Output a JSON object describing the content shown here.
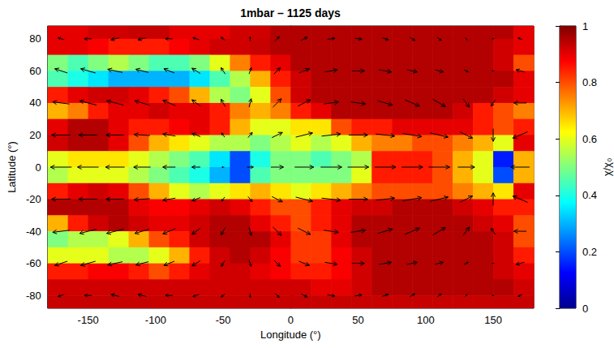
{
  "chart_data": {
    "type": "heatmap",
    "title": "1mbar – 1125 days",
    "x_label": "Longitude (°)",
    "y_label": "Latitude (°)",
    "xlim": [
      -180,
      180
    ],
    "xticks": [
      -150,
      -100,
      -50,
      0,
      50,
      100,
      150
    ],
    "ylim": [
      -88,
      88
    ],
    "yticks": [
      -80,
      -60,
      -40,
      -20,
      0,
      20,
      40,
      60,
      80
    ],
    "grid": false,
    "lon": [
      -172.5,
      -157.5,
      -142.5,
      -127.5,
      -112.5,
      -97.5,
      -82.5,
      -67.5,
      -52.5,
      -37.5,
      -22.5,
      -7.5,
      7.5,
      22.5,
      37.5,
      52.5,
      67.5,
      82.5,
      97.5,
      112.5,
      127.5,
      142.5,
      157.5,
      172.5
    ],
    "lat": [
      85,
      75,
      65,
      55,
      45,
      35,
      25,
      15,
      5,
      -5,
      -15,
      -25,
      -35,
      -45,
      -55,
      -65,
      -75,
      -85
    ],
    "values": [
      [
        0.9,
        0.9,
        0.92,
        0.92,
        0.93,
        0.93,
        0.9,
        0.9,
        0.9,
        0.92,
        0.92,
        0.95,
        0.95,
        0.95,
        0.95,
        0.95,
        0.95,
        0.95,
        0.95,
        0.95,
        0.95,
        0.95,
        0.95,
        0.9
      ],
      [
        0.9,
        0.9,
        0.88,
        0.85,
        0.85,
        0.85,
        0.88,
        0.9,
        0.92,
        0.92,
        0.93,
        0.95,
        0.95,
        0.95,
        0.95,
        0.95,
        0.95,
        0.95,
        0.95,
        0.95,
        0.95,
        0.95,
        0.92,
        0.9
      ],
      [
        0.5,
        0.45,
        0.5,
        0.55,
        0.5,
        0.45,
        0.45,
        0.5,
        0.6,
        0.75,
        0.85,
        0.9,
        0.95,
        0.95,
        0.95,
        0.95,
        0.95,
        0.95,
        0.95,
        0.95,
        0.95,
        0.95,
        0.92,
        0.8
      ],
      [
        0.45,
        0.4,
        0.35,
        0.3,
        0.3,
        0.3,
        0.3,
        0.35,
        0.45,
        0.55,
        0.7,
        0.85,
        0.92,
        0.95,
        0.95,
        0.95,
        0.95,
        0.95,
        0.95,
        0.95,
        0.95,
        0.95,
        0.95,
        0.9
      ],
      [
        0.85,
        0.9,
        0.92,
        0.92,
        0.9,
        0.85,
        0.8,
        0.7,
        0.55,
        0.5,
        0.6,
        0.8,
        0.92,
        0.95,
        0.95,
        0.95,
        0.95,
        0.95,
        0.95,
        0.95,
        0.95,
        0.95,
        0.92,
        0.9
      ],
      [
        0.7,
        0.75,
        0.85,
        0.9,
        0.9,
        0.92,
        0.9,
        0.9,
        0.85,
        0.75,
        0.7,
        0.75,
        0.85,
        0.9,
        0.95,
        0.95,
        0.95,
        0.95,
        0.95,
        0.95,
        0.92,
        0.85,
        0.8,
        0.75
      ],
      [
        0.9,
        0.95,
        0.95,
        0.9,
        0.85,
        0.85,
        0.88,
        0.9,
        0.85,
        0.7,
        0.6,
        0.6,
        0.65,
        0.65,
        0.8,
        0.85,
        0.85,
        0.9,
        0.9,
        0.9,
        0.9,
        0.85,
        0.8,
        0.85
      ],
      [
        0.92,
        0.95,
        0.95,
        0.9,
        0.8,
        0.7,
        0.65,
        0.6,
        0.55,
        0.55,
        0.5,
        0.55,
        0.6,
        0.55,
        0.6,
        0.7,
        0.75,
        0.75,
        0.8,
        0.8,
        0.75,
        0.7,
        0.6,
        0.9
      ],
      [
        0.6,
        0.65,
        0.65,
        0.65,
        0.6,
        0.55,
        0.5,
        0.45,
        0.35,
        0.2,
        0.4,
        0.5,
        0.5,
        0.45,
        0.5,
        0.55,
        0.85,
        0.85,
        0.85,
        0.8,
        0.7,
        0.6,
        0.15,
        0.7
      ],
      [
        0.55,
        0.6,
        0.6,
        0.6,
        0.55,
        0.5,
        0.45,
        0.4,
        0.3,
        0.2,
        0.45,
        0.5,
        0.5,
        0.5,
        0.5,
        0.6,
        0.85,
        0.85,
        0.85,
        0.8,
        0.7,
        0.6,
        0.2,
        0.7
      ],
      [
        0.85,
        0.9,
        0.92,
        0.9,
        0.8,
        0.7,
        0.6,
        0.55,
        0.6,
        0.65,
        0.7,
        0.65,
        0.6,
        0.65,
        0.7,
        0.75,
        0.8,
        0.8,
        0.8,
        0.8,
        0.75,
        0.7,
        0.65,
        0.9
      ],
      [
        0.95,
        0.95,
        0.95,
        0.95,
        0.9,
        0.88,
        0.88,
        0.9,
        0.92,
        0.9,
        0.85,
        0.8,
        0.8,
        0.85,
        0.9,
        0.92,
        0.92,
        0.95,
        0.95,
        0.95,
        0.92,
        0.9,
        0.85,
        0.85
      ],
      [
        0.7,
        0.85,
        0.92,
        0.95,
        0.92,
        0.9,
        0.9,
        0.92,
        0.95,
        0.95,
        0.9,
        0.85,
        0.8,
        0.85,
        0.9,
        0.95,
        0.95,
        0.95,
        0.95,
        0.95,
        0.95,
        0.92,
        0.9,
        0.8
      ],
      [
        0.5,
        0.55,
        0.55,
        0.6,
        0.7,
        0.8,
        0.85,
        0.92,
        0.95,
        0.95,
        0.95,
        0.9,
        0.82,
        0.82,
        0.9,
        0.95,
        0.95,
        0.95,
        0.95,
        0.95,
        0.95,
        0.95,
        0.92,
        0.8
      ],
      [
        0.6,
        0.6,
        0.6,
        0.55,
        0.55,
        0.6,
        0.7,
        0.85,
        0.92,
        0.95,
        0.92,
        0.88,
        0.82,
        0.82,
        0.88,
        0.92,
        0.95,
        0.95,
        0.95,
        0.95,
        0.95,
        0.95,
        0.92,
        0.85
      ],
      [
        0.85,
        0.85,
        0.88,
        0.88,
        0.85,
        0.8,
        0.85,
        0.9,
        0.92,
        0.92,
        0.9,
        0.88,
        0.85,
        0.85,
        0.88,
        0.92,
        0.95,
        0.95,
        0.95,
        0.95,
        0.95,
        0.95,
        0.92,
        0.9
      ],
      [
        0.92,
        0.92,
        0.92,
        0.92,
        0.92,
        0.92,
        0.92,
        0.92,
        0.92,
        0.92,
        0.92,
        0.92,
        0.92,
        0.9,
        0.9,
        0.92,
        0.95,
        0.95,
        0.95,
        0.95,
        0.95,
        0.95,
        0.95,
        0.92
      ],
      [
        0.93,
        0.93,
        0.93,
        0.93,
        0.93,
        0.93,
        0.93,
        0.93,
        0.93,
        0.93,
        0.93,
        0.93,
        0.93,
        0.93,
        0.93,
        0.93,
        0.93,
        0.93,
        0.93,
        0.93,
        0.93,
        0.93,
        0.93,
        0.93
      ]
    ],
    "vectors": {
      "lon": [
        -170,
        -150,
        -130,
        -110,
        -90,
        -70,
        -50,
        -30,
        -10,
        10,
        30,
        50,
        70,
        90,
        110,
        130,
        150,
        170
      ],
      "lat": [
        80,
        60,
        40,
        20,
        0,
        -20,
        -40,
        -60,
        -80
      ],
      "u": [
        [
          -0.3,
          -0.35,
          -0.4,
          -0.4,
          -0.35,
          -0.3,
          -0.2,
          0,
          0.2,
          0.3,
          0.35,
          0.35,
          0.3,
          0.25,
          0.2,
          0.1,
          -0.1,
          -0.2
        ],
        [
          -0.6,
          -0.7,
          -0.7,
          -0.6,
          -0.5,
          -0.4,
          -0.2,
          0.1,
          0.3,
          0.5,
          0.6,
          0.6,
          0.6,
          0.5,
          0.4,
          0.2,
          -0.1,
          -0.4
        ],
        [
          -0.8,
          -0.8,
          -0.8,
          -0.7,
          -0.6,
          -0.4,
          -0.2,
          0.1,
          0.4,
          0.6,
          0.7,
          0.7,
          0.7,
          0.7,
          0.6,
          0.3,
          -0.2,
          -0.6
        ],
        [
          -0.9,
          -0.9,
          -0.85,
          -0.75,
          -0.6,
          -0.4,
          -0.15,
          0.2,
          0.5,
          0.8,
          0.9,
          0.9,
          0.9,
          0.9,
          0.85,
          0.6,
          0,
          -0.7
        ],
        [
          -1,
          -1,
          -0.9,
          -0.8,
          -0.6,
          -0.4,
          -0.1,
          0.3,
          0.6,
          0.9,
          1,
          1,
          1,
          1,
          1,
          0.8,
          0,
          -0.9
        ],
        [
          -0.9,
          -0.9,
          -0.85,
          -0.75,
          -0.6,
          -0.4,
          -0.15,
          0.2,
          0.5,
          0.8,
          0.9,
          0.9,
          0.9,
          0.9,
          0.85,
          0.6,
          0,
          -0.7
        ],
        [
          -0.8,
          -0.8,
          -0.8,
          -0.7,
          -0.6,
          -0.4,
          -0.2,
          0.1,
          0.4,
          0.6,
          0.7,
          0.7,
          0.7,
          0.7,
          0.6,
          0.3,
          -0.2,
          -0.6
        ],
        [
          -0.6,
          -0.7,
          -0.7,
          -0.6,
          -0.5,
          -0.4,
          -0.2,
          0.1,
          0.3,
          0.5,
          0.6,
          0.6,
          0.6,
          0.5,
          0.4,
          0.2,
          -0.1,
          -0.4
        ],
        [
          -0.3,
          -0.35,
          -0.4,
          -0.4,
          -0.35,
          -0.3,
          -0.2,
          0,
          0.2,
          0.3,
          0.35,
          0.35,
          0.3,
          0.25,
          0.2,
          0.1,
          -0.1,
          -0.2
        ]
      ],
      "v": [
        [
          0.1,
          0,
          -0.1,
          -0.1,
          0,
          0.1,
          0.15,
          0.2,
          0.2,
          0.15,
          0.05,
          -0.05,
          -0.1,
          -0.15,
          -0.15,
          -0.1,
          0,
          0.1
        ],
        [
          0.2,
          0.2,
          0.15,
          0.15,
          0.2,
          0.25,
          0.3,
          0.3,
          0.3,
          0.2,
          0.1,
          0,
          -0.1,
          -0.1,
          -0.1,
          -0.1,
          0,
          0.1
        ],
        [
          0.1,
          0.2,
          0.2,
          0.2,
          0.25,
          0.3,
          0.35,
          0.4,
          0.4,
          0.3,
          0.1,
          -0.1,
          -0.2,
          -0.3,
          -0.35,
          -0.4,
          -0.3,
          0
        ],
        [
          0,
          0,
          0,
          0.05,
          0.1,
          0.15,
          0.2,
          0.25,
          0.25,
          0.2,
          0.1,
          0,
          -0.1,
          -0.15,
          -0.2,
          -0.3,
          -0.6,
          -0.3
        ],
        [
          0,
          0,
          0,
          0,
          0,
          0,
          0,
          0,
          0,
          0,
          0,
          0,
          0,
          0,
          0,
          0,
          0,
          0
        ],
        [
          0,
          0,
          0,
          -0.05,
          -0.1,
          -0.15,
          -0.2,
          -0.25,
          -0.25,
          -0.2,
          -0.1,
          0,
          0.1,
          0.15,
          0.2,
          0.3,
          0.6,
          0.3
        ],
        [
          -0.1,
          -0.2,
          -0.2,
          -0.2,
          -0.25,
          -0.3,
          -0.35,
          -0.4,
          -0.4,
          -0.3,
          -0.1,
          0.1,
          0.2,
          0.3,
          0.35,
          0.4,
          0.3,
          0
        ],
        [
          -0.2,
          -0.2,
          -0.15,
          -0.15,
          -0.2,
          -0.25,
          -0.3,
          -0.3,
          -0.3,
          -0.2,
          -0.1,
          0,
          0.1,
          0.1,
          0.1,
          0.1,
          0,
          -0.1
        ],
        [
          -0.1,
          0,
          0.1,
          0.1,
          0,
          -0.1,
          -0.15,
          -0.2,
          -0.2,
          -0.15,
          -0.05,
          0.05,
          0.1,
          0.15,
          0.15,
          0.1,
          0,
          -0.1
        ]
      ]
    },
    "colorbar": {
      "label": "χ/χ₀",
      "lim": [
        0,
        1
      ],
      "ticks": [
        0,
        0.2,
        0.4,
        0.6,
        0.8,
        1
      ]
    }
  }
}
